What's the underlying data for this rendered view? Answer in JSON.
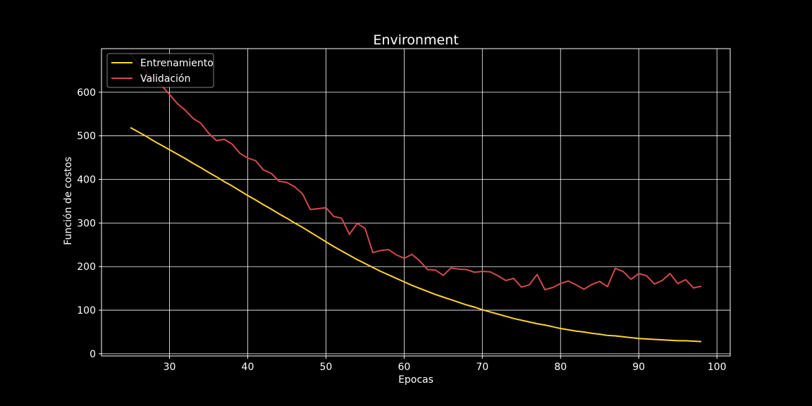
{
  "chart_data": {
    "type": "line",
    "title": "Environment",
    "xlabel": "Epocas",
    "ylabel": "Función de costos",
    "xlim": [
      21.3,
      101.7
    ],
    "ylim": [
      -5,
      700
    ],
    "xticks": [
      30,
      40,
      50,
      60,
      70,
      80,
      90,
      100
    ],
    "yticks": [
      0,
      100,
      200,
      300,
      400,
      500,
      600
    ],
    "grid": true,
    "legend_position": "top-left",
    "background": "#000000",
    "foreground": "#ffffff",
    "series": [
      {
        "name": "Entrenamiento",
        "color": "#ffd42e",
        "x": [
          25,
          26,
          27,
          28,
          29,
          30,
          31,
          32,
          33,
          34,
          35,
          36,
          37,
          38,
          39,
          40,
          41,
          42,
          43,
          44,
          45,
          46,
          47,
          48,
          49,
          50,
          51,
          52,
          53,
          54,
          55,
          56,
          57,
          58,
          59,
          60,
          61,
          62,
          63,
          64,
          65,
          66,
          67,
          68,
          69,
          70,
          71,
          72,
          73,
          74,
          75,
          76,
          77,
          78,
          79,
          80,
          81,
          82,
          83,
          84,
          85,
          86,
          87,
          88,
          89,
          90,
          91,
          92,
          93,
          94,
          95,
          96,
          97,
          98
        ],
        "y": [
          519,
          509,
          499,
          488,
          478,
          468,
          458,
          448,
          437,
          427,
          416,
          406,
          395,
          385,
          374,
          363,
          353,
          342,
          332,
          321,
          311,
          300,
          290,
          279,
          268,
          257,
          246,
          236,
          226,
          216,
          207,
          198,
          189,
          181,
          173,
          165,
          157,
          150,
          143,
          136,
          130,
          124,
          118,
          112,
          107,
          101,
          96,
          91,
          86,
          81,
          77,
          73,
          69,
          66,
          62,
          58,
          55,
          52,
          50,
          47,
          45,
          42,
          41,
          39,
          37,
          35,
          34,
          33,
          32,
          31,
          30,
          30,
          29,
          28
        ]
      },
      {
        "name": "Validación",
        "color": "#d3484e",
        "x": [
          25,
          26,
          27,
          28,
          29,
          30,
          31,
          32,
          33,
          34,
          35,
          36,
          37,
          38,
          39,
          40,
          41,
          42,
          43,
          44,
          45,
          46,
          47,
          48,
          49,
          50,
          51,
          52,
          53,
          54,
          55,
          56,
          57,
          58,
          59,
          60,
          61,
          62,
          63,
          64,
          65,
          66,
          67,
          68,
          69,
          70,
          71,
          72,
          73,
          74,
          75,
          76,
          77,
          78,
          79,
          80,
          81,
          82,
          83,
          84,
          85,
          86,
          87,
          88,
          89,
          90,
          91,
          92,
          93,
          94,
          95,
          96,
          97,
          98
        ],
        "y": [
          688,
          665,
          648,
          630,
          615,
          595,
          574,
          559,
          540,
          529,
          506,
          489,
          492,
          481,
          460,
          449,
          443,
          422,
          414,
          396,
          393,
          383,
          367,
          331,
          333,
          335,
          315,
          311,
          274,
          299,
          288,
          232,
          237,
          239,
          227,
          219,
          228,
          213,
          193,
          192,
          180,
          197,
          194,
          193,
          187,
          189,
          188,
          179,
          168,
          173,
          153,
          158,
          182,
          147,
          152,
          161,
          167,
          158,
          148,
          159,
          166,
          154,
          196,
          189,
          171,
          184,
          179,
          160,
          168,
          184,
          161,
          170,
          151,
          155
        ]
      }
    ]
  }
}
